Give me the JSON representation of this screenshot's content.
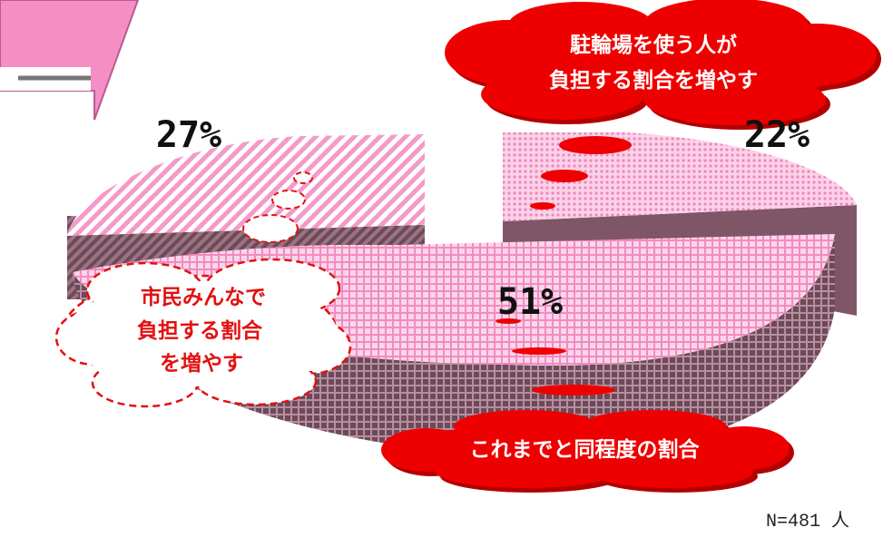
{
  "colors": {
    "accent_pink": "#f58ec4",
    "callout_red": "#ef0000",
    "callout_dark": "#b30000",
    "dashed_red": "#e31010",
    "side_wall": "#7f5667"
  },
  "chart_data": {
    "type": "pie",
    "style": "3d-exploded",
    "categories": [
      "市民みんなで負担する割合を増やす",
      "駐輪場を使う人が負担する割合を増やす",
      "これまでと同程度の割合"
    ],
    "values": [
      27,
      22,
      51
    ],
    "units": "%",
    "sample_size": "N=481 人"
  },
  "labels": {
    "slice_27": "27%",
    "slice_22": "22%",
    "slice_51": "51%",
    "sample": "N=481 人"
  },
  "callouts": {
    "parking": [
      "駐輪場を使う人が",
      "負担する割合を増やす"
    ],
    "citizens": [
      "市民みんなで",
      "負担する割合",
      "を増やす"
    ],
    "same": "これまでと同程度の割合"
  },
  "header": {
    "icon": "pink-arrow-tab"
  }
}
